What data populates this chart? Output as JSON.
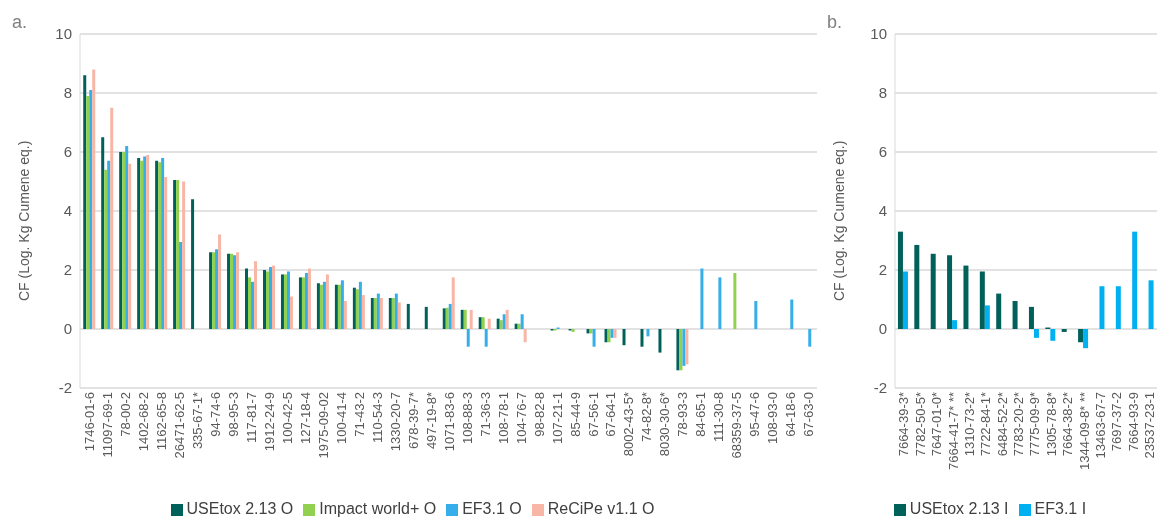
{
  "chart_data": [
    {
      "type": "bar",
      "title": "a.",
      "ylabel": "CF (Log. Kg Cumene eq.)",
      "ylim": [
        -2,
        10
      ],
      "yticks": [
        -2,
        0,
        2,
        4,
        6,
        8,
        10
      ],
      "grid": "y",
      "legend": "bottom",
      "categories": [
        "1746-01-6",
        "11097-69-1",
        "78-00-2",
        "1402-68-2",
        "1162-65-8",
        "26471-62-5",
        "335-67-1*",
        "94-74-6",
        "98-95-3",
        "117-81-7",
        "1912-24-9",
        "100-42-5",
        "127-18-4",
        "1975-09-02",
        "100-41-4",
        "71-43-2",
        "110-54-3",
        "1330-20-7",
        "678-39-7*",
        "497-19-8*",
        "1071-83-6",
        "108-88-3",
        "71-36-3",
        "108-78-1",
        "104-76-7",
        "98-82-8",
        "107-21-1",
        "85-44-9",
        "67-56-1",
        "67-64-1",
        "8002-43-5*",
        "74-82-8*",
        "8030-30-6*",
        "78-93-3",
        "84-65-1",
        "111-30-8",
        "68359-37-5",
        "95-47-6",
        "108-93-0",
        "64-18-6",
        "67-63-0"
      ],
      "series": [
        {
          "name": "USEtox 2.13 O",
          "color": "#00605a",
          "values": [
            8.6,
            6.5,
            6.0,
            5.8,
            5.7,
            5.05,
            4.4,
            2.6,
            2.55,
            2.05,
            2.0,
            1.85,
            1.75,
            1.55,
            1.5,
            1.4,
            1.05,
            1.05,
            0.85,
            0.75,
            0.7,
            0.65,
            0.4,
            0.35,
            0.18,
            null,
            -0.05,
            -0.05,
            -0.15,
            -0.45,
            -0.55,
            -0.6,
            -0.8,
            -1.4,
            null,
            null,
            null,
            null,
            null,
            null,
            null
          ]
        },
        {
          "name": "Impact world+ O",
          "color": "#92d050",
          "values": [
            7.9,
            5.4,
            6.0,
            5.7,
            5.65,
            5.05,
            null,
            2.6,
            2.55,
            1.75,
            1.95,
            1.85,
            1.75,
            1.5,
            1.5,
            1.35,
            1.05,
            1.05,
            null,
            null,
            0.72,
            0.65,
            0.4,
            0.3,
            0.18,
            null,
            -0.05,
            -0.1,
            -0.15,
            -0.45,
            null,
            null,
            null,
            -1.4,
            null,
            null,
            1.9,
            null,
            null,
            null,
            null
          ]
        },
        {
          "name": "EF3.1 O",
          "color": "#35aee9",
          "values": [
            8.1,
            5.7,
            6.2,
            5.85,
            5.8,
            2.95,
            null,
            2.7,
            2.5,
            1.6,
            2.1,
            1.95,
            1.9,
            1.6,
            1.65,
            1.6,
            1.2,
            1.2,
            null,
            null,
            0.85,
            -0.6,
            -0.6,
            0.5,
            0.5,
            null,
            0.05,
            null,
            -0.6,
            -0.3,
            null,
            -0.25,
            null,
            -1.25,
            2.05,
            1.75,
            null,
            0.95,
            null,
            1.0,
            -0.6
          ]
        },
        {
          "name": "ReCiPe v1.1 O",
          "color": "#f8b7a6",
          "values": [
            8.8,
            7.5,
            5.6,
            5.9,
            5.15,
            5.0,
            null,
            3.2,
            2.6,
            2.3,
            2.15,
            1.1,
            2.05,
            1.85,
            0.95,
            1.15,
            1.05,
            0.9,
            null,
            null,
            1.75,
            0.65,
            0.35,
            0.65,
            -0.45,
            null,
            null,
            null,
            null,
            -0.3,
            null,
            null,
            null,
            -1.2,
            null,
            null,
            null,
            null,
            null,
            null,
            null
          ]
        }
      ]
    },
    {
      "type": "bar",
      "title": "b.",
      "ylabel": "CF (Log. Kg Cumene eq.)",
      "ylim": [
        -2,
        10
      ],
      "yticks": [
        -2,
        0,
        2,
        4,
        6,
        8,
        10
      ],
      "grid": "y",
      "legend": "bottom",
      "categories": [
        "7664-39-3*",
        "7782-50-5*",
        "7647-01-0*",
        "7664-41-7* **",
        "1310-73-2*",
        "7722-84-1*",
        "6484-52-2*",
        "7783-20-2*",
        "7775-09-9*",
        "1305-78-8*",
        "7664-38-2*",
        "1344-09-8* **",
        "13463-67-7",
        "7697-37-2",
        "7664-93-9",
        "23537-23-1"
      ],
      "series": [
        {
          "name": "USEtox 2.13 I",
          "color": "#00605a",
          "values": [
            3.3,
            2.85,
            2.55,
            2.5,
            2.15,
            1.95,
            1.2,
            0.95,
            0.75,
            0.05,
            -0.1,
            -0.45,
            null,
            null,
            null,
            null
          ]
        },
        {
          "name": "EF3.1 I",
          "color": "#00b0f0",
          "values": [
            1.95,
            null,
            null,
            0.3,
            null,
            0.8,
            null,
            null,
            -0.3,
            -0.4,
            null,
            -0.65,
            1.45,
            1.45,
            3.3,
            1.65
          ]
        }
      ]
    }
  ]
}
